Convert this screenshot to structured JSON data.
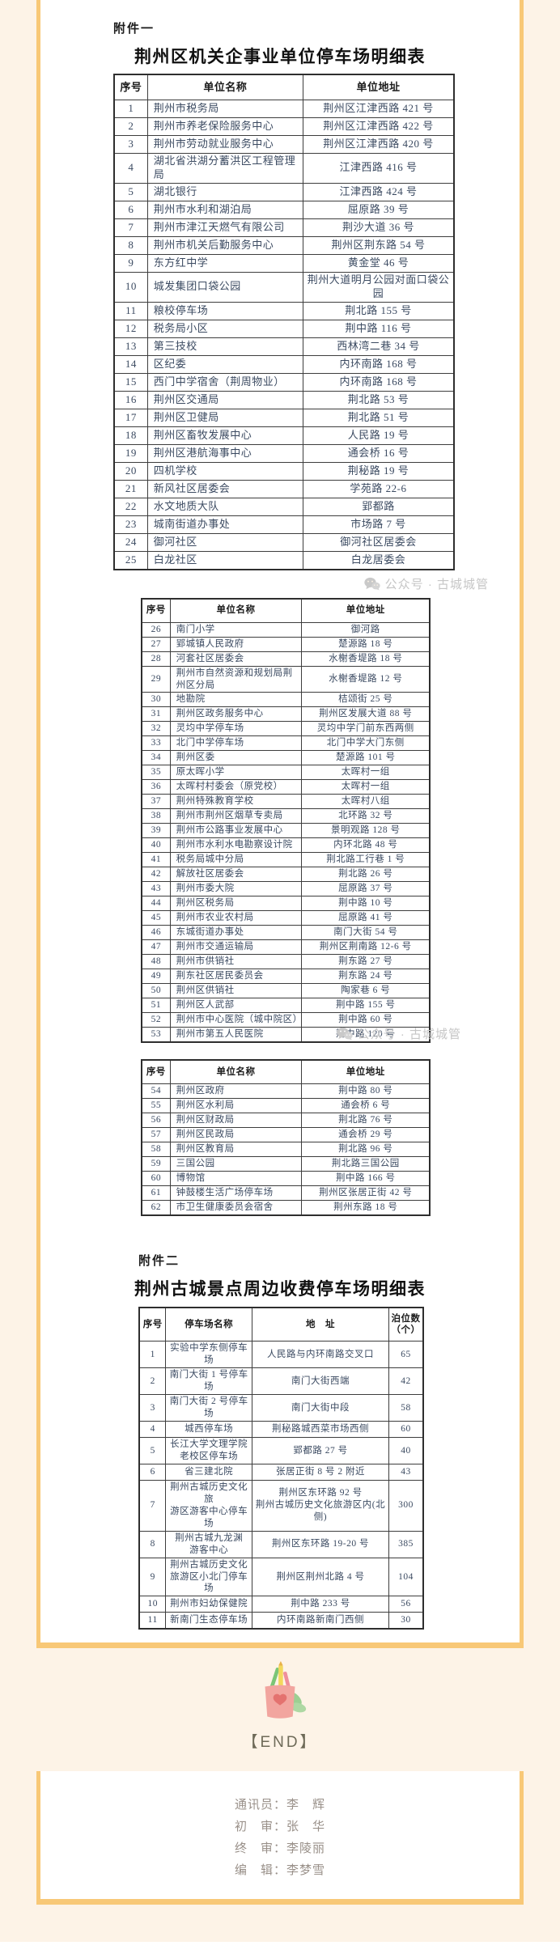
{
  "page": {
    "attachment1": "附件一",
    "attachment2": "附件二",
    "title1": "荆州区机关企事业单位停车场明细表",
    "title2": "荆州古城景点周边收费停车场明细表",
    "watermark_text": "公众号 · 古城城管",
    "end_label": "【END】",
    "colors": {
      "cream_background": "#fdf3e7",
      "stripe_orange": "#f8c877",
      "table_text": "#3b4a61",
      "watermark_gray": "#c6c6c6"
    }
  },
  "unit_tables": {
    "part1": {
      "headers": [
        "序号",
        "单位名称",
        "单位地址"
      ],
      "rows": [
        [
          "1",
          "荆州市税务局",
          "荆州区江津西路 421 号"
        ],
        [
          "2",
          "荆州市养老保险服务中心",
          "荆州区江津西路 422 号"
        ],
        [
          "3",
          "荆州市劳动就业服务中心",
          "荆州区江津西路 420 号"
        ],
        [
          "4",
          "湖北省洪湖分蓄洪区工程管理局",
          "江津西路 416 号"
        ],
        [
          "5",
          "湖北银行",
          "江津西路 424 号"
        ],
        [
          "6",
          "荆州市水利和湖泊局",
          "屈原路 39 号"
        ],
        [
          "7",
          "荆州市津江天燃气有限公司",
          "荆沙大道 36 号"
        ],
        [
          "8",
          "荆州市机关后勤服务中心",
          "荆州区荆东路 54 号"
        ],
        [
          "9",
          "东方红中学",
          "黄金堂 46 号"
        ],
        [
          "10",
          "城发集团口袋公园",
          "荆州大道明月公园对面口袋公园"
        ],
        [
          "11",
          "粮校停车场",
          "荆北路 155 号"
        ],
        [
          "12",
          "税务局小区",
          "荆中路 116 号"
        ],
        [
          "13",
          "第三技校",
          "西林湾二巷 34 号"
        ],
        [
          "14",
          "区纪委",
          "内环南路 168 号"
        ],
        [
          "15",
          "西门中学宿舍（荆周物业）",
          "内环南路 168 号"
        ],
        [
          "16",
          "荆州区交通局",
          "荆北路 53 号"
        ],
        [
          "17",
          "荆州区卫健局",
          "荆北路 51 号"
        ],
        [
          "18",
          "荆州区畜牧发展中心",
          "人民路 19 号"
        ],
        [
          "19",
          "荆州区港航海事中心",
          "通会桥 16 号"
        ],
        [
          "20",
          "四机学校",
          "荆秘路 19 号"
        ],
        [
          "21",
          "新风社区居委会",
          "学苑路 22-6"
        ],
        [
          "22",
          "水文地质大队",
          "郢都路"
        ],
        [
          "23",
          "城南街道办事处",
          "市场路 7 号"
        ],
        [
          "24",
          "御河社区",
          "御河社区居委会"
        ],
        [
          "25",
          "白龙社区",
          "白龙居委会"
        ]
      ]
    },
    "part2": {
      "headers": [
        "序号",
        "单位名称",
        "单位地址"
      ],
      "rows": [
        [
          "26",
          "南门小学",
          "御河路"
        ],
        [
          "27",
          "郢城镇人民政府",
          "楚源路 18 号"
        ],
        [
          "28",
          "河套社区居委会",
          "水榭香堤路 18 号"
        ],
        [
          "29",
          "荆州市自然资源和规划局荆州区分局",
          "水榭香堤路 12 号"
        ],
        [
          "30",
          "地勘院",
          "桔颂街 25 号"
        ],
        [
          "31",
          "荆州区政务服务中心",
          "荆州区发展大道 88 号"
        ],
        [
          "32",
          "灵均中学停车场",
          "灵均中学门前东西两侧"
        ],
        [
          "33",
          "北门中学停车场",
          "北门中学大门东侧"
        ],
        [
          "34",
          "荆州区委",
          "楚源路 101 号"
        ],
        [
          "35",
          "原太晖小学",
          "太晖村一组"
        ],
        [
          "36",
          "太晖村村委会（原党校）",
          "太晖村一组"
        ],
        [
          "37",
          "荆州特殊教育学校",
          "太晖村八组"
        ],
        [
          "38",
          "荆州市荆州区烟草专卖局",
          "北环路 32 号"
        ],
        [
          "39",
          "荆州市公路事业发展中心",
          "景明观路 128 号"
        ],
        [
          "40",
          "荆州市水利水电勘察设计院",
          "内环北路 48 号"
        ],
        [
          "41",
          "税务局城中分局",
          "荆北路工行巷 1 号"
        ],
        [
          "42",
          "解放社区居委会",
          "荆北路 26 号"
        ],
        [
          "43",
          "荆州市委大院",
          "屈原路 37 号"
        ],
        [
          "44",
          "荆州区税务局",
          "荆中路 10 号"
        ],
        [
          "45",
          "荆州市农业农村局",
          "屈原路 41 号"
        ],
        [
          "46",
          "东城街道办事处",
          "南门大街 54 号"
        ],
        [
          "47",
          "荆州市交通运输局",
          "荆州区荆南路 12-6 号"
        ],
        [
          "48",
          "荆州市供销社",
          "荆东路 27 号"
        ],
        [
          "49",
          "荆东社区居民委员会",
          "荆东路 24 号"
        ],
        [
          "50",
          "荆州区供销社",
          "陶家巷 6 号"
        ],
        [
          "51",
          "荆州区人武部",
          "荆中路 155 号"
        ],
        [
          "52",
          "荆州市中心医院（城中院区）",
          "荆中路 60 号"
        ],
        [
          "53",
          "荆州市第五人民医院",
          "荆中路 120 号"
        ]
      ]
    },
    "part3": {
      "headers": [
        "序号",
        "单位名称",
        "单位地址"
      ],
      "rows": [
        [
          "54",
          "荆州区政府",
          "荆中路 80 号"
        ],
        [
          "55",
          "荆州区水利局",
          "通会桥 6 号"
        ],
        [
          "56",
          "荆州区财政局",
          "荆北路 76 号"
        ],
        [
          "57",
          "荆州区民政局",
          "通会桥 29 号"
        ],
        [
          "58",
          "荆州区教育局",
          "荆北路 96 号"
        ],
        [
          "59",
          "三国公园",
          "荆北路三国公园"
        ],
        [
          "60",
          "博物馆",
          "荆中路 166 号"
        ],
        [
          "61",
          "钟鼓楼生活广场停车场",
          "荆州区张居正街 42 号"
        ],
        [
          "62",
          "市卫生健康委员会宿舍",
          "荆州东路 18 号"
        ]
      ]
    }
  },
  "paid_table": {
    "headers": [
      "序号",
      "停车场名称",
      "地　址",
      "泊位数\n（个）"
    ],
    "rows": [
      [
        "1",
        "实验中学东侧停车场",
        "人民路与内环南路交叉口",
        "65"
      ],
      [
        "2",
        "南门大街 1 号停车场",
        "南门大街西端",
        "42"
      ],
      [
        "3",
        "南门大街 2 号停车场",
        "南门大街中段",
        "58"
      ],
      [
        "4",
        "城西停车场",
        "荆秘路城西菜市场西侧",
        "60"
      ],
      [
        "5",
        "长江大学文理学院\n老校区停车场",
        "郢都路 27 号",
        "40"
      ],
      [
        "6",
        "省三建北院",
        "张居正街 8 号 2 附近",
        "43"
      ],
      [
        "7",
        "荆州古城历史文化旅\n游区游客中心停车场",
        "荆州区东环路 92 号\n荆州古城历史文化旅游区内(北侧)",
        "300"
      ],
      [
        "8",
        "荆州古城九龙渊\n游客中心",
        "荆州区东环路 19-20 号",
        "385"
      ],
      [
        "9",
        "荆州古城历史文化\n旅游区小北门停车场",
        "荆州区荆州北路 4 号",
        "104"
      ],
      [
        "10",
        "荆州市妇幼保健院",
        "荆中路 233 号",
        "56"
      ],
      [
        "11",
        "新南门生态停车场",
        "内环南路新南门西侧",
        "30"
      ]
    ]
  },
  "footer": {
    "credits": [
      "通讯员：李　辉",
      "初　审：张　华",
      "终　审：李陵丽",
      "编　辑：李梦雪"
    ]
  }
}
